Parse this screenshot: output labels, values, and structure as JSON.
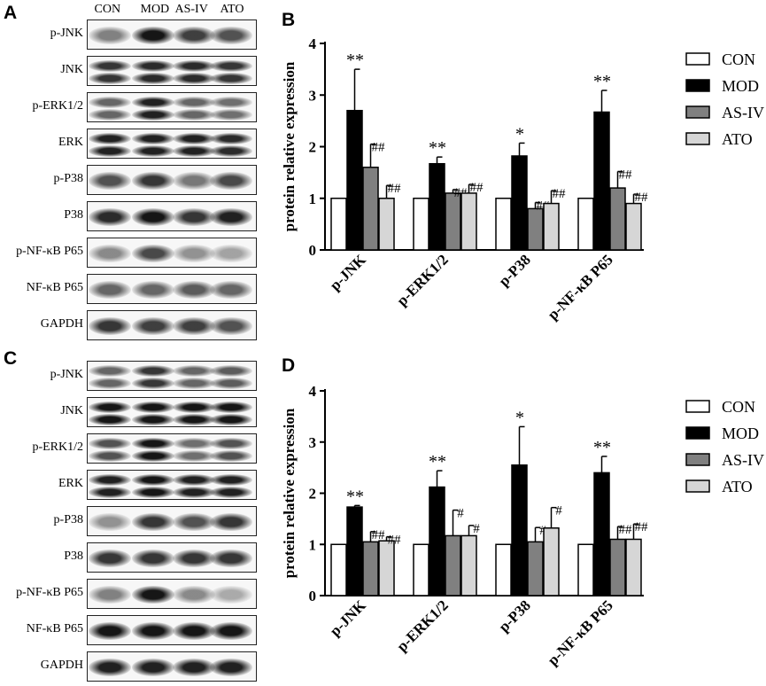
{
  "panels": {
    "A": "A",
    "B": "B",
    "C": "C",
    "D": "D"
  },
  "blots": [
    {
      "lanes": [
        "CON",
        "MOD",
        "AS-IV",
        "ATO"
      ],
      "rows": [
        {
          "label": "p-JNK",
          "intensity": [
            0.45,
            1.0,
            0.8,
            0.7
          ],
          "double": false
        },
        {
          "label": "JNK",
          "intensity": [
            0.85,
            0.9,
            0.9,
            0.85
          ],
          "double": true
        },
        {
          "label": "p-ERK1/2",
          "intensity": [
            0.6,
            0.95,
            0.6,
            0.55
          ],
          "double": true
        },
        {
          "label": "ERK",
          "intensity": [
            0.95,
            0.95,
            0.95,
            0.9
          ],
          "double": true
        },
        {
          "label": "p-P38",
          "intensity": [
            0.7,
            0.85,
            0.5,
            0.75
          ],
          "double": false
        },
        {
          "label": "P38",
          "intensity": [
            0.9,
            1.0,
            0.85,
            0.95
          ],
          "double": false
        },
        {
          "label": "p-NF-κB P65",
          "intensity": [
            0.4,
            0.75,
            0.35,
            0.25
          ],
          "double": false
        },
        {
          "label": "NF-κB P65",
          "intensity": [
            0.6,
            0.6,
            0.65,
            0.6
          ],
          "double": false
        },
        {
          "label": "GAPDH",
          "intensity": [
            0.85,
            0.8,
            0.8,
            0.7
          ],
          "double": false
        }
      ]
    },
    {
      "lanes": [],
      "rows": [
        {
          "label": "p-JNK",
          "intensity": [
            0.6,
            0.85,
            0.6,
            0.65
          ],
          "double": true
        },
        {
          "label": "JNK",
          "intensity": [
            1.0,
            1.0,
            1.0,
            1.0
          ],
          "double": true
        },
        {
          "label": "p-ERK1/2",
          "intensity": [
            0.7,
            1.0,
            0.55,
            0.7
          ],
          "double": true
        },
        {
          "label": "ERK",
          "intensity": [
            0.95,
            1.0,
            0.95,
            0.95
          ],
          "double": true
        },
        {
          "label": "p-P38",
          "intensity": [
            0.35,
            0.85,
            0.7,
            0.85
          ],
          "double": false
        },
        {
          "label": "P38",
          "intensity": [
            0.85,
            0.85,
            0.85,
            0.85
          ],
          "double": false
        },
        {
          "label": "p-NF-κB P65",
          "intensity": [
            0.45,
            1.0,
            0.4,
            0.2
          ],
          "double": false
        },
        {
          "label": "NF-κB P65",
          "intensity": [
            1.0,
            1.0,
            1.0,
            1.0
          ],
          "double": false
        },
        {
          "label": "GAPDH",
          "intensity": [
            0.95,
            0.95,
            0.95,
            0.95
          ],
          "double": false
        }
      ]
    }
  ],
  "chart_data": [
    {
      "type": "bar",
      "panel": "B",
      "categories": [
        "p-JNK",
        "p-ERK1/2",
        "p-P38",
        "p-NF-κB P65"
      ],
      "ylabel": "protein relative expression",
      "ylim": [
        0,
        4
      ],
      "yticks": [
        "0",
        "1",
        "2",
        "3",
        "4"
      ],
      "legend_position": "right",
      "series": [
        {
          "name": "CON",
          "color": "#ffffff",
          "values": [
            1.0,
            1.0,
            1.0,
            1.0
          ],
          "errors": [
            0,
            0,
            0,
            0
          ],
          "marks": [
            "",
            "",
            "",
            ""
          ]
        },
        {
          "name": "MOD",
          "color": "#000000",
          "values": [
            2.7,
            1.67,
            1.82,
            2.67
          ],
          "errors": [
            0.8,
            0.13,
            0.25,
            0.42
          ],
          "marks": [
            "**",
            "**",
            "*",
            "**"
          ]
        },
        {
          "name": "AS-IV",
          "color": "#808080",
          "values": [
            1.6,
            1.1,
            0.8,
            1.2
          ],
          "errors": [
            0.45,
            0.07,
            0.12,
            0.32
          ],
          "marks": [
            "##",
            "##",
            "##",
            "##"
          ]
        },
        {
          "name": "ATO",
          "color": "#d6d6d6",
          "values": [
            1.0,
            1.1,
            0.9,
            0.9
          ],
          "errors": [
            0.25,
            0.17,
            0.25,
            0.18
          ],
          "marks": [
            "##",
            "##",
            "##",
            "##"
          ]
        }
      ]
    },
    {
      "type": "bar",
      "panel": "D",
      "categories": [
        "p-JNK",
        "p-ERK1/2",
        "p-P38",
        "p-NF-κB P65"
      ],
      "ylabel": "protein relative expression",
      "ylim": [
        0,
        4
      ],
      "yticks": [
        "0",
        "1",
        "2",
        "3",
        "4"
      ],
      "legend_position": "right",
      "series": [
        {
          "name": "CON",
          "color": "#ffffff",
          "values": [
            1.0,
            1.0,
            1.0,
            1.0
          ],
          "errors": [
            0,
            0,
            0,
            0
          ],
          "marks": [
            "",
            "",
            "",
            ""
          ]
        },
        {
          "name": "MOD",
          "color": "#000000",
          "values": [
            1.73,
            2.12,
            2.55,
            2.4
          ],
          "errors": [
            0.03,
            0.32,
            0.75,
            0.32
          ],
          "marks": [
            "**",
            "**",
            "*",
            "**"
          ]
        },
        {
          "name": "AS-IV",
          "color": "#808080",
          "values": [
            1.05,
            1.17,
            1.05,
            1.1
          ],
          "errors": [
            0.2,
            0.5,
            0.28,
            0.25
          ],
          "marks": [
            "##",
            "#",
            "#",
            "##"
          ]
        },
        {
          "name": "ATO",
          "color": "#d6d6d6",
          "values": [
            1.07,
            1.17,
            1.32,
            1.1
          ],
          "errors": [
            0.08,
            0.2,
            0.4,
            0.3
          ],
          "marks": [
            "##",
            "#",
            "#",
            "##"
          ]
        }
      ]
    }
  ]
}
